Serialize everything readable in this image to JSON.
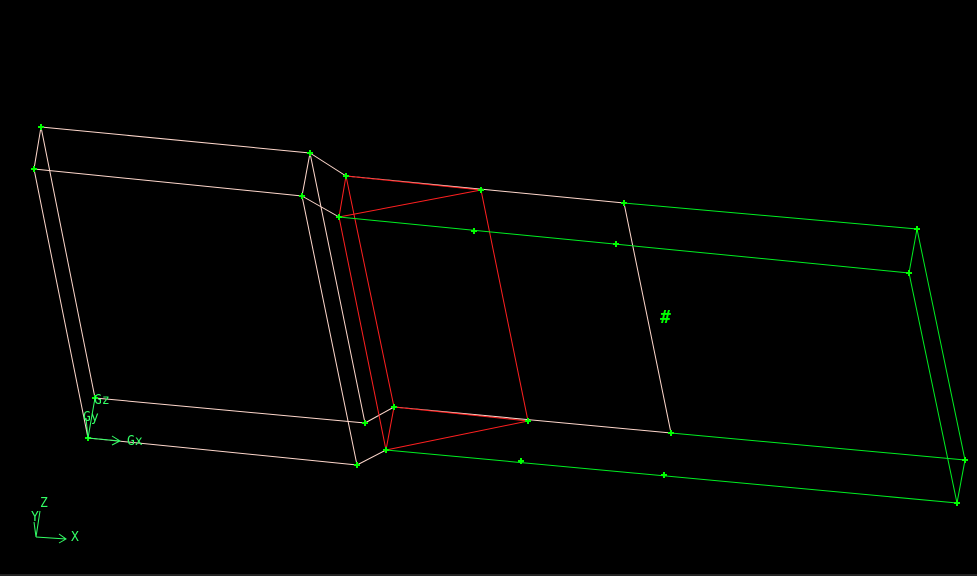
{
  "colors": {
    "background": "#000000",
    "edge_default": "#ffd8cc",
    "edge_selected": "#ff2020",
    "edge_green": "#00ee22",
    "vertex": "#00ff00",
    "axis": "#33ff66"
  },
  "global_axes": {
    "x_label": "Gx",
    "y_label": "Gy",
    "z_label": "Gz"
  },
  "view_axes": {
    "x_label": "X",
    "y_label": "Y",
    "z_label": "Z"
  },
  "marker_label": "#"
}
